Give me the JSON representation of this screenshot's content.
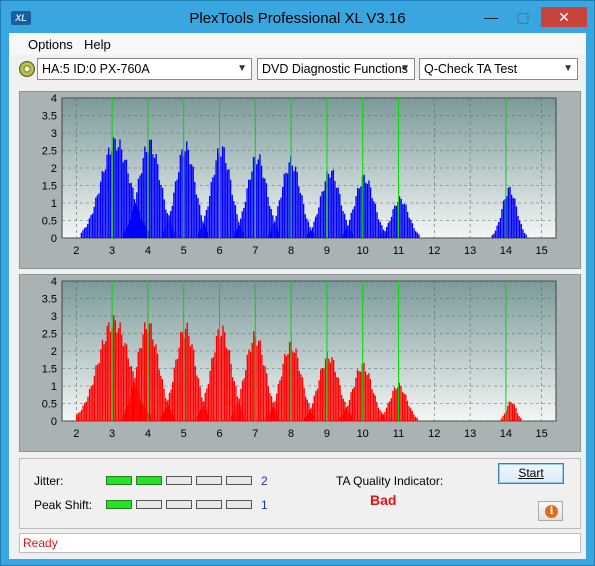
{
  "window": {
    "title": "PlexTools Professional XL V3.16",
    "icon_text": "XL",
    "minimize": "—",
    "maximize": "▢",
    "close": "✕"
  },
  "menu": {
    "options": "Options",
    "help": "Help"
  },
  "toolbar": {
    "drive": "HA:5 ID:0  PX-760A",
    "function": "DVD Diagnostic Functions",
    "test": "Q-Check TA Test"
  },
  "charts": {
    "y_ticks": [
      "4",
      "3.5",
      "3",
      "2.5",
      "2",
      "1.5",
      "1",
      "0.5",
      "0"
    ],
    "x_ticks": [
      "2",
      "3",
      "4",
      "5",
      "6",
      "7",
      "8",
      "9",
      "10",
      "11",
      "12",
      "13",
      "14",
      "15"
    ],
    "green_lines": [
      3,
      4,
      5,
      6,
      7,
      8,
      9,
      10,
      11,
      14
    ],
    "colors": {
      "top": "#0000ff",
      "bottom": "#ff0000",
      "grid_line": "#00dd00",
      "plot_bg_top": "#7c9a9a",
      "plot_bg_bottom": "#f4f6f6"
    }
  },
  "chart_data": [
    {
      "type": "area",
      "name": "top",
      "xlim": [
        1.6,
        15.4
      ],
      "ylim": [
        0,
        4
      ],
      "peaks": [
        {
          "c": 3.1,
          "h": 2.95,
          "w": 0.6
        },
        {
          "c": 4.05,
          "h": 2.9,
          "w": 0.45
        },
        {
          "c": 5.05,
          "h": 2.8,
          "w": 0.4
        },
        {
          "c": 6.05,
          "h": 2.75,
          "w": 0.4
        },
        {
          "c": 7.05,
          "h": 2.5,
          "w": 0.4
        },
        {
          "c": 8.0,
          "h": 2.35,
          "w": 0.4
        },
        {
          "c": 9.1,
          "h": 2.05,
          "w": 0.4
        },
        {
          "c": 10.05,
          "h": 1.85,
          "w": 0.4
        },
        {
          "c": 11.05,
          "h": 1.2,
          "w": 0.35
        },
        {
          "c": 14.1,
          "h": 1.5,
          "w": 0.3
        }
      ]
    },
    {
      "type": "area",
      "name": "bottom",
      "xlim": [
        1.6,
        15.4
      ],
      "ylim": [
        0,
        4
      ],
      "peaks": [
        {
          "c": 3.05,
          "h": 3.05,
          "w": 0.65
        },
        {
          "c": 4.0,
          "h": 2.95,
          "w": 0.45
        },
        {
          "c": 5.05,
          "h": 2.85,
          "w": 0.42
        },
        {
          "c": 6.05,
          "h": 2.8,
          "w": 0.42
        },
        {
          "c": 7.0,
          "h": 2.6,
          "w": 0.42
        },
        {
          "c": 8.0,
          "h": 2.35,
          "w": 0.42
        },
        {
          "c": 9.05,
          "h": 2.0,
          "w": 0.42
        },
        {
          "c": 10.0,
          "h": 1.7,
          "w": 0.4
        },
        {
          "c": 11.0,
          "h": 1.1,
          "w": 0.35
        },
        {
          "c": 14.15,
          "h": 0.6,
          "w": 0.2
        }
      ]
    }
  ],
  "metrics": {
    "jitter_label": "Jitter:",
    "jitter_value": "2",
    "jitter_level": 2,
    "peak_label": "Peak Shift:",
    "peak_value": "1",
    "peak_level": 1,
    "ta_label": "TA Quality Indicator:",
    "ta_value": "Bad",
    "start": "Start",
    "info_icon": "i"
  },
  "status": {
    "text": "Ready"
  }
}
